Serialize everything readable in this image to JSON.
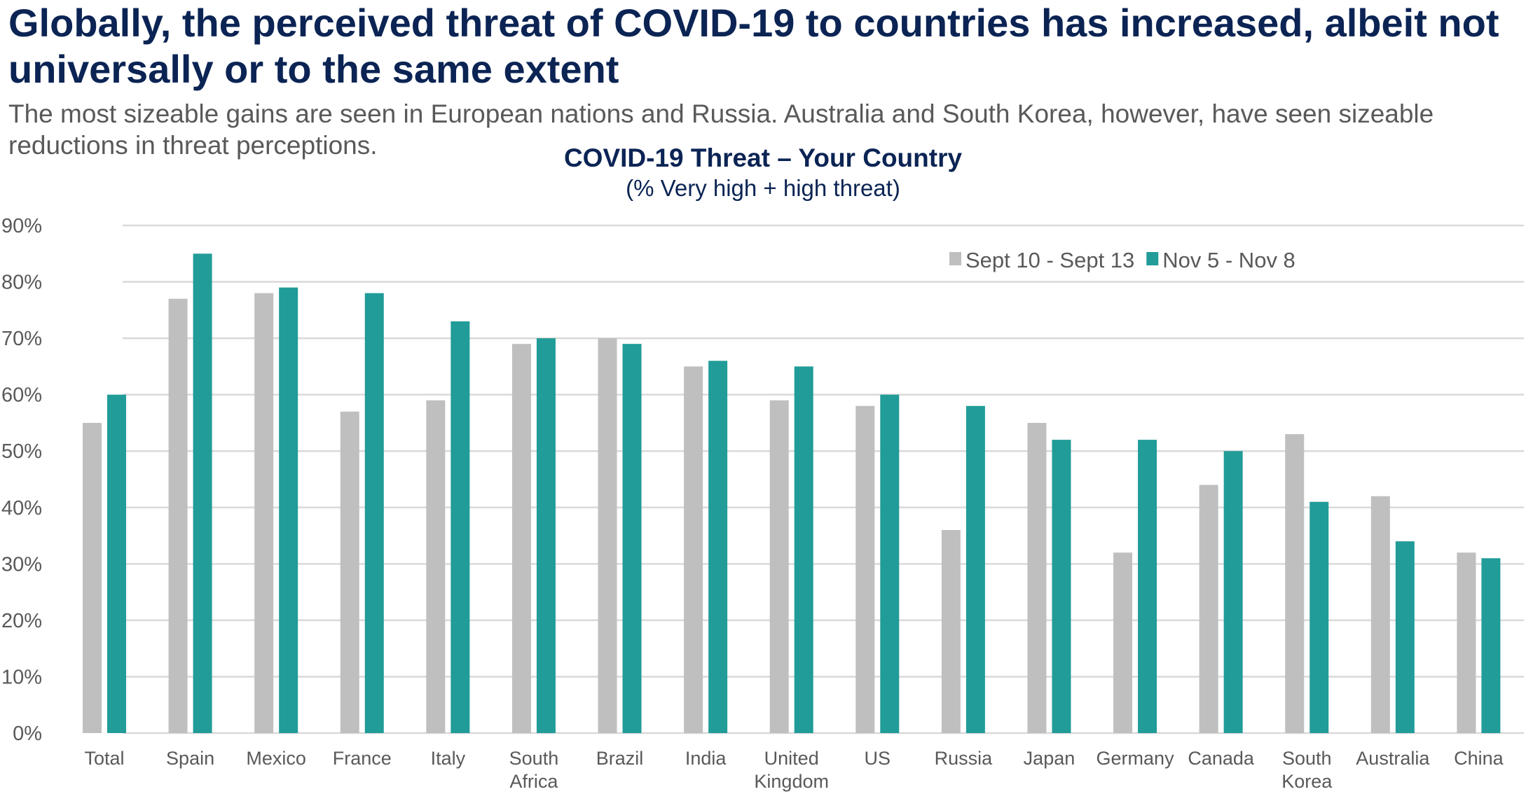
{
  "header": {
    "title": "Globally, the perceived threat of COVID-19 to countries has increased, albeit not universally or to the same extent",
    "subtitle": "The most sizeable gains are seen in European nations and Russia. Australia and South Korea, however, have seen sizeable reductions in threat perceptions."
  },
  "chart_data": {
    "type": "bar",
    "title": "COVID-19 Threat – Your Country",
    "subtitle": "(% Very high + high threat)",
    "categories": [
      [
        "Total"
      ],
      [
        "Spain"
      ],
      [
        "Mexico"
      ],
      [
        "France"
      ],
      [
        "Italy"
      ],
      [
        "South",
        "Africa"
      ],
      [
        "Brazil"
      ],
      [
        "India"
      ],
      [
        "United",
        "Kingdom"
      ],
      [
        "US"
      ],
      [
        "Russia"
      ],
      [
        "Japan"
      ],
      [
        "Germany"
      ],
      [
        "Canada"
      ],
      [
        "South",
        "Korea"
      ],
      [
        "Australia"
      ],
      [
        "China"
      ]
    ],
    "series": [
      {
        "name": "Sept 10 - Sept 13",
        "color": "#bfbfbf",
        "values": [
          55,
          77,
          78,
          57,
          59,
          69,
          70,
          65,
          59,
          58,
          36,
          55,
          32,
          44,
          53,
          42,
          32
        ]
      },
      {
        "name": "Nov 5 - Nov 8",
        "color": "#219c98",
        "values": [
          60,
          85,
          79,
          78,
          73,
          70,
          69,
          66,
          65,
          60,
          58,
          52,
          52,
          50,
          41,
          34,
          31
        ]
      }
    ],
    "ylim": [
      0,
      90
    ],
    "yticks": [
      "0%",
      "10%",
      "20%",
      "30%",
      "40%",
      "50%",
      "60%",
      "70%",
      "80%",
      "90%"
    ],
    "grid": true,
    "legend": "top-right",
    "xlabel": "",
    "ylabel": ""
  }
}
